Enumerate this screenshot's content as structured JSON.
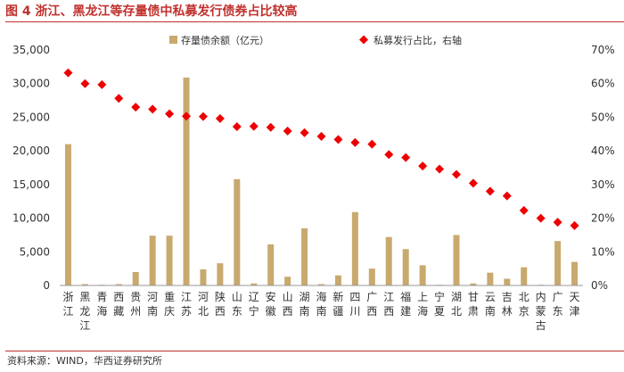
{
  "figure": {
    "title": "图 4  浙江、黑龙江等存量债中私募发行债券占比较高",
    "source": "资料来源：WIND，华西证券研究所"
  },
  "colors": {
    "accent": "#c0312e",
    "bar": "#c8a96e",
    "marker": "#ee0000",
    "axis_text": "#333333"
  },
  "chart_data": {
    "type": "bar",
    "categories": [
      "浙江",
      "黑龙江",
      "青海",
      "西藏",
      "贵州",
      "河南",
      "重庆",
      "江苏",
      "河北",
      "陕西",
      "山东",
      "辽宁",
      "安徽",
      "山西",
      "湖南",
      "海南",
      "新疆",
      "四川",
      "广西",
      "江西",
      "福建",
      "上海",
      "宁夏",
      "湖北",
      "甘肃",
      "云南",
      "吉林",
      "北京",
      "内蒙古",
      "广东",
      "天津"
    ],
    "category_lines": [
      [
        "浙",
        "江"
      ],
      [
        "黑",
        "龙",
        "江"
      ],
      [
        "青",
        "海"
      ],
      [
        "西",
        "藏"
      ],
      [
        "贵",
        "州"
      ],
      [
        "河",
        "南"
      ],
      [
        "重",
        "庆"
      ],
      [
        "江",
        "苏"
      ],
      [
        "河",
        "北"
      ],
      [
        "陕",
        "西"
      ],
      [
        "山",
        "东"
      ],
      [
        "辽",
        "宁"
      ],
      [
        "安",
        "徽"
      ],
      [
        "山",
        "西"
      ],
      [
        "湖",
        "南"
      ],
      [
        "海",
        "南"
      ],
      [
        "新",
        "疆"
      ],
      [
        "四",
        "川"
      ],
      [
        "广",
        "西"
      ],
      [
        "江",
        "西"
      ],
      [
        "福",
        "建"
      ],
      [
        "上",
        "海"
      ],
      [
        "宁",
        "夏"
      ],
      [
        "湖",
        "北"
      ],
      [
        "甘",
        "肃"
      ],
      [
        "云",
        "南"
      ],
      [
        "吉",
        "林"
      ],
      [
        "北",
        "京"
      ],
      [
        "内",
        "蒙",
        "古"
      ],
      [
        "广",
        "东"
      ],
      [
        "天",
        "津"
      ]
    ],
    "series": [
      {
        "name": "存量债余额（亿元）",
        "type": "bar",
        "axis": "left",
        "values": [
          21000,
          200,
          100,
          200,
          2000,
          7400,
          7400,
          30900,
          2400,
          3300,
          15800,
          300,
          6100,
          1300,
          8500,
          200,
          1500,
          10900,
          2500,
          7200,
          5400,
          3000,
          100,
          7500,
          300,
          1900,
          1000,
          2700,
          100,
          6600,
          3500
        ]
      },
      {
        "name": "私募发行占比，右轴",
        "type": "scatter",
        "axis": "right",
        "unit": "%",
        "values": [
          63.2,
          60.0,
          59.7,
          55.6,
          53.0,
          52.4,
          51.0,
          50.3,
          50.2,
          49.6,
          47.2,
          47.3,
          47.0,
          45.9,
          45.4,
          44.3,
          43.4,
          42.5,
          42.0,
          38.9,
          38.0,
          35.5,
          34.6,
          33.0,
          30.4,
          28.0,
          26.6,
          22.3,
          20.0,
          18.8,
          17.8
        ]
      }
    ],
    "left_axis": {
      "min": 0,
      "max": 35000,
      "ticks": [
        "0",
        "5,000",
        "10,000",
        "15,000",
        "20,000",
        "25,000",
        "30,000",
        "35,000"
      ]
    },
    "right_axis": {
      "min": 0,
      "max": 70,
      "ticks": [
        "0%",
        "10%",
        "20%",
        "30%",
        "40%",
        "50%",
        "60%",
        "70%"
      ]
    },
    "grid": false,
    "legend": {
      "position": "top"
    }
  }
}
